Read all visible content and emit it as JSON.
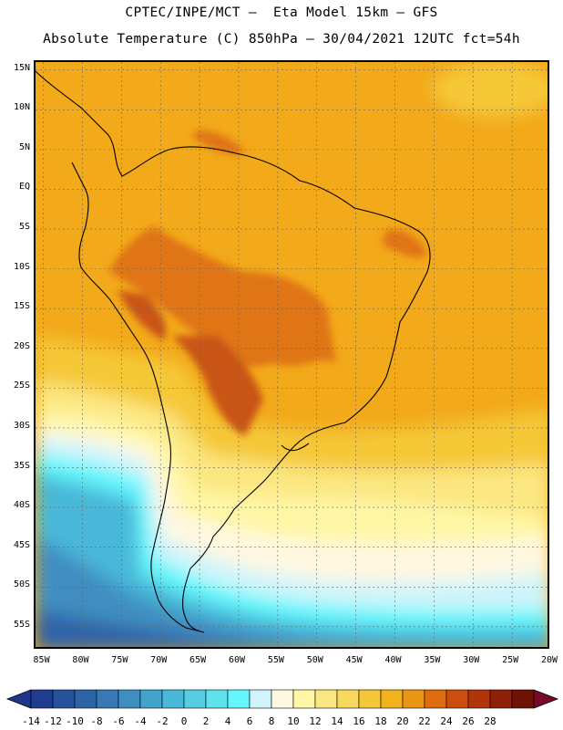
{
  "header": {
    "line1": "CPTEC/INPE/MCT –  Eta Model 15km – GFS",
    "line2": "Absolute Temperature (C) 850hPa – 30/04/2021 12UTC fct=54h"
  },
  "axes": {
    "lat_labels": [
      "15N",
      "10N",
      "5N",
      "EQ",
      "5S",
      "10S",
      "15S",
      "20S",
      "25S",
      "30S",
      "35S",
      "40S",
      "45S",
      "50S",
      "55S"
    ],
    "lon_labels": [
      "85W",
      "80W",
      "75W",
      "70W",
      "65W",
      "60W",
      "55W",
      "50W",
      "45W",
      "40W",
      "35W",
      "30W",
      "25W",
      "20W"
    ],
    "lat_range": [
      -58,
      16
    ],
    "lon_range": [
      -86,
      -20
    ]
  },
  "legend": {
    "labels": [
      "-14",
      "-12",
      "-10",
      "-8",
      "-6",
      "-4",
      "-2",
      "0",
      "2",
      "4",
      "6",
      "8",
      "10",
      "12",
      "14",
      "16",
      "18",
      "20",
      "22",
      "24",
      "26",
      "28"
    ],
    "colors": [
      "#1f3c8f",
      "#26519c",
      "#2d64a8",
      "#3879b5",
      "#3f8ec1",
      "#42a3cc",
      "#4ab8d8",
      "#56cde2",
      "#5fe2ec",
      "#64f6fc",
      "#cff4fb",
      "#fff8e1",
      "#fff6a6",
      "#fbe781",
      "#f8d85e",
      "#f5c839",
      "#f2b21c",
      "#eb9517",
      "#e06c10",
      "#cc4d0d",
      "#b13509",
      "#8d2006",
      "#6e1205"
    ]
  },
  "colors": {
    "coast": "#000000",
    "warm": "#f2a91a",
    "hot": "#e07515",
    "hottest": "#c95412",
    "cold": "#4ab8d8"
  }
}
